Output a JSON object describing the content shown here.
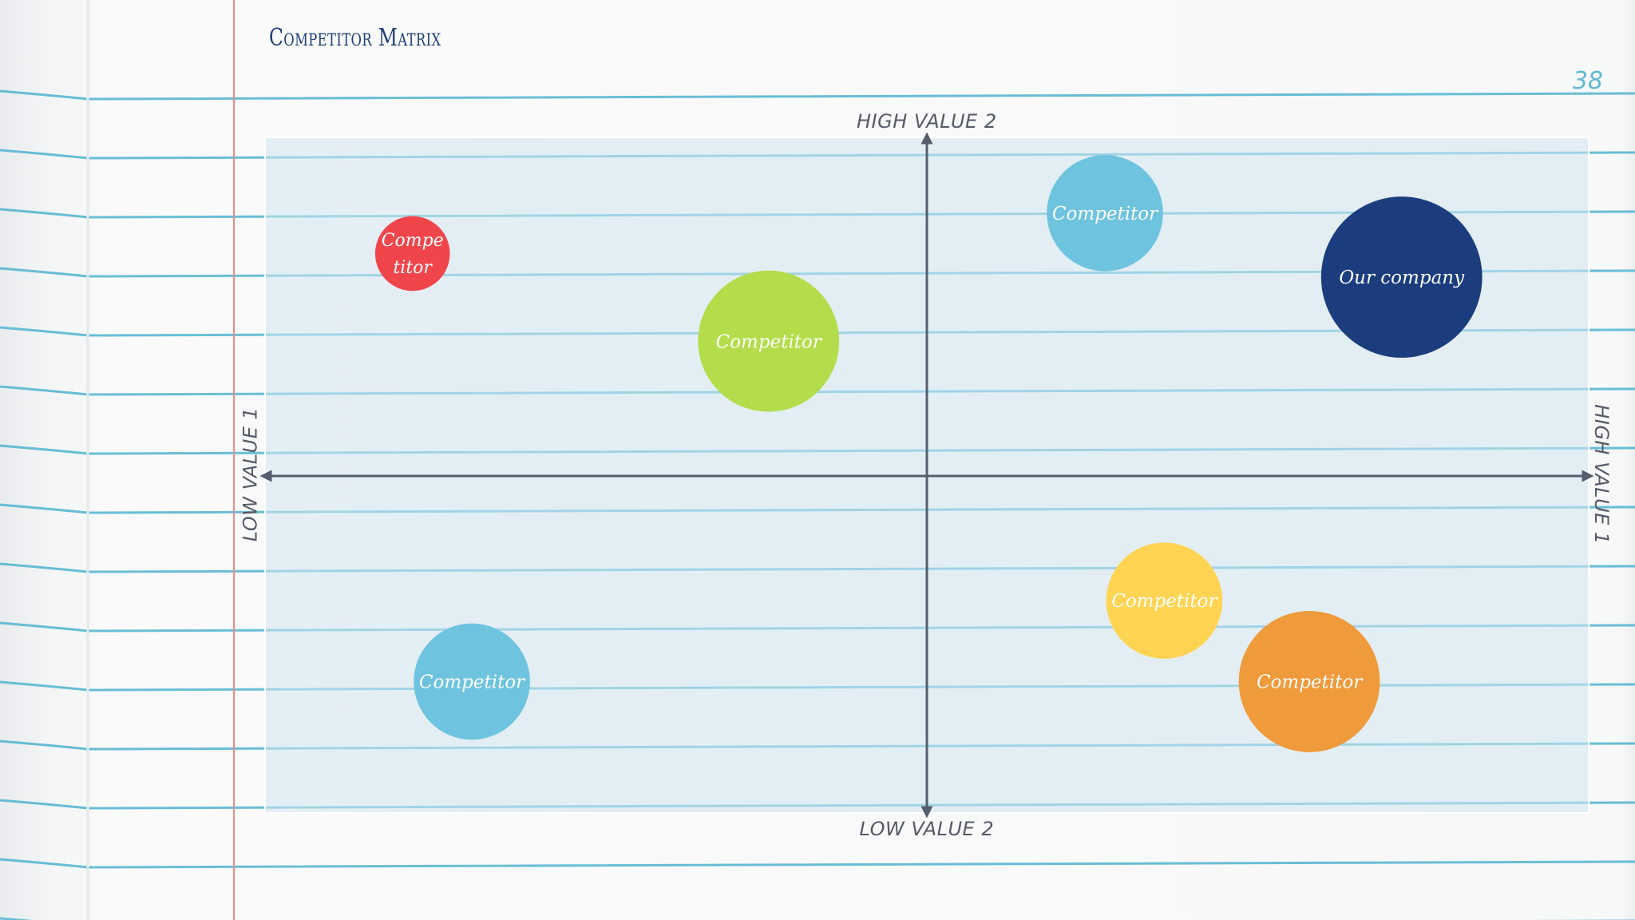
{
  "slide": {
    "title": "Competitor Matrix",
    "page_number": "38"
  },
  "axes": {
    "top": "HIGH VALUE 2",
    "bottom": "LOW VALUE 2",
    "left": "LOW VALUE 1",
    "right": "HIGH VALUE 1"
  },
  "colors": {
    "red": "#f0464b",
    "green": "#b3dd4a",
    "light_blue": "#6ec3df",
    "navy": "#1b3d7d",
    "yellow": "#ffd452",
    "orange": "#ef9a3b",
    "axis": "#555e6c"
  },
  "competitors": [
    {
      "lines": [
        "Compe",
        "titor"
      ],
      "value1": -0.78,
      "value2": 0.66,
      "size": 0.45,
      "color": "red"
    },
    {
      "lines": [
        "Competitor"
      ],
      "value1": -0.24,
      "value2": 0.4,
      "size": 0.85,
      "color": "green"
    },
    {
      "lines": [
        "Competitor"
      ],
      "value1": 0.27,
      "value2": 0.78,
      "size": 0.7,
      "color": "light_blue"
    },
    {
      "lines": [
        "Our company"
      ],
      "value1": 0.72,
      "value2": 0.59,
      "size": 0.97,
      "color": "navy"
    },
    {
      "lines": [
        "Competitor"
      ],
      "value1": 0.36,
      "value2": -0.37,
      "size": 0.7,
      "color": "yellow"
    },
    {
      "lines": [
        "Competitor"
      ],
      "value1": 0.58,
      "value2": -0.61,
      "size": 0.85,
      "color": "orange"
    },
    {
      "lines": [
        "Competitor"
      ],
      "value1": -0.69,
      "value2": -0.61,
      "size": 0.7,
      "color": "light_blue"
    }
  ]
}
